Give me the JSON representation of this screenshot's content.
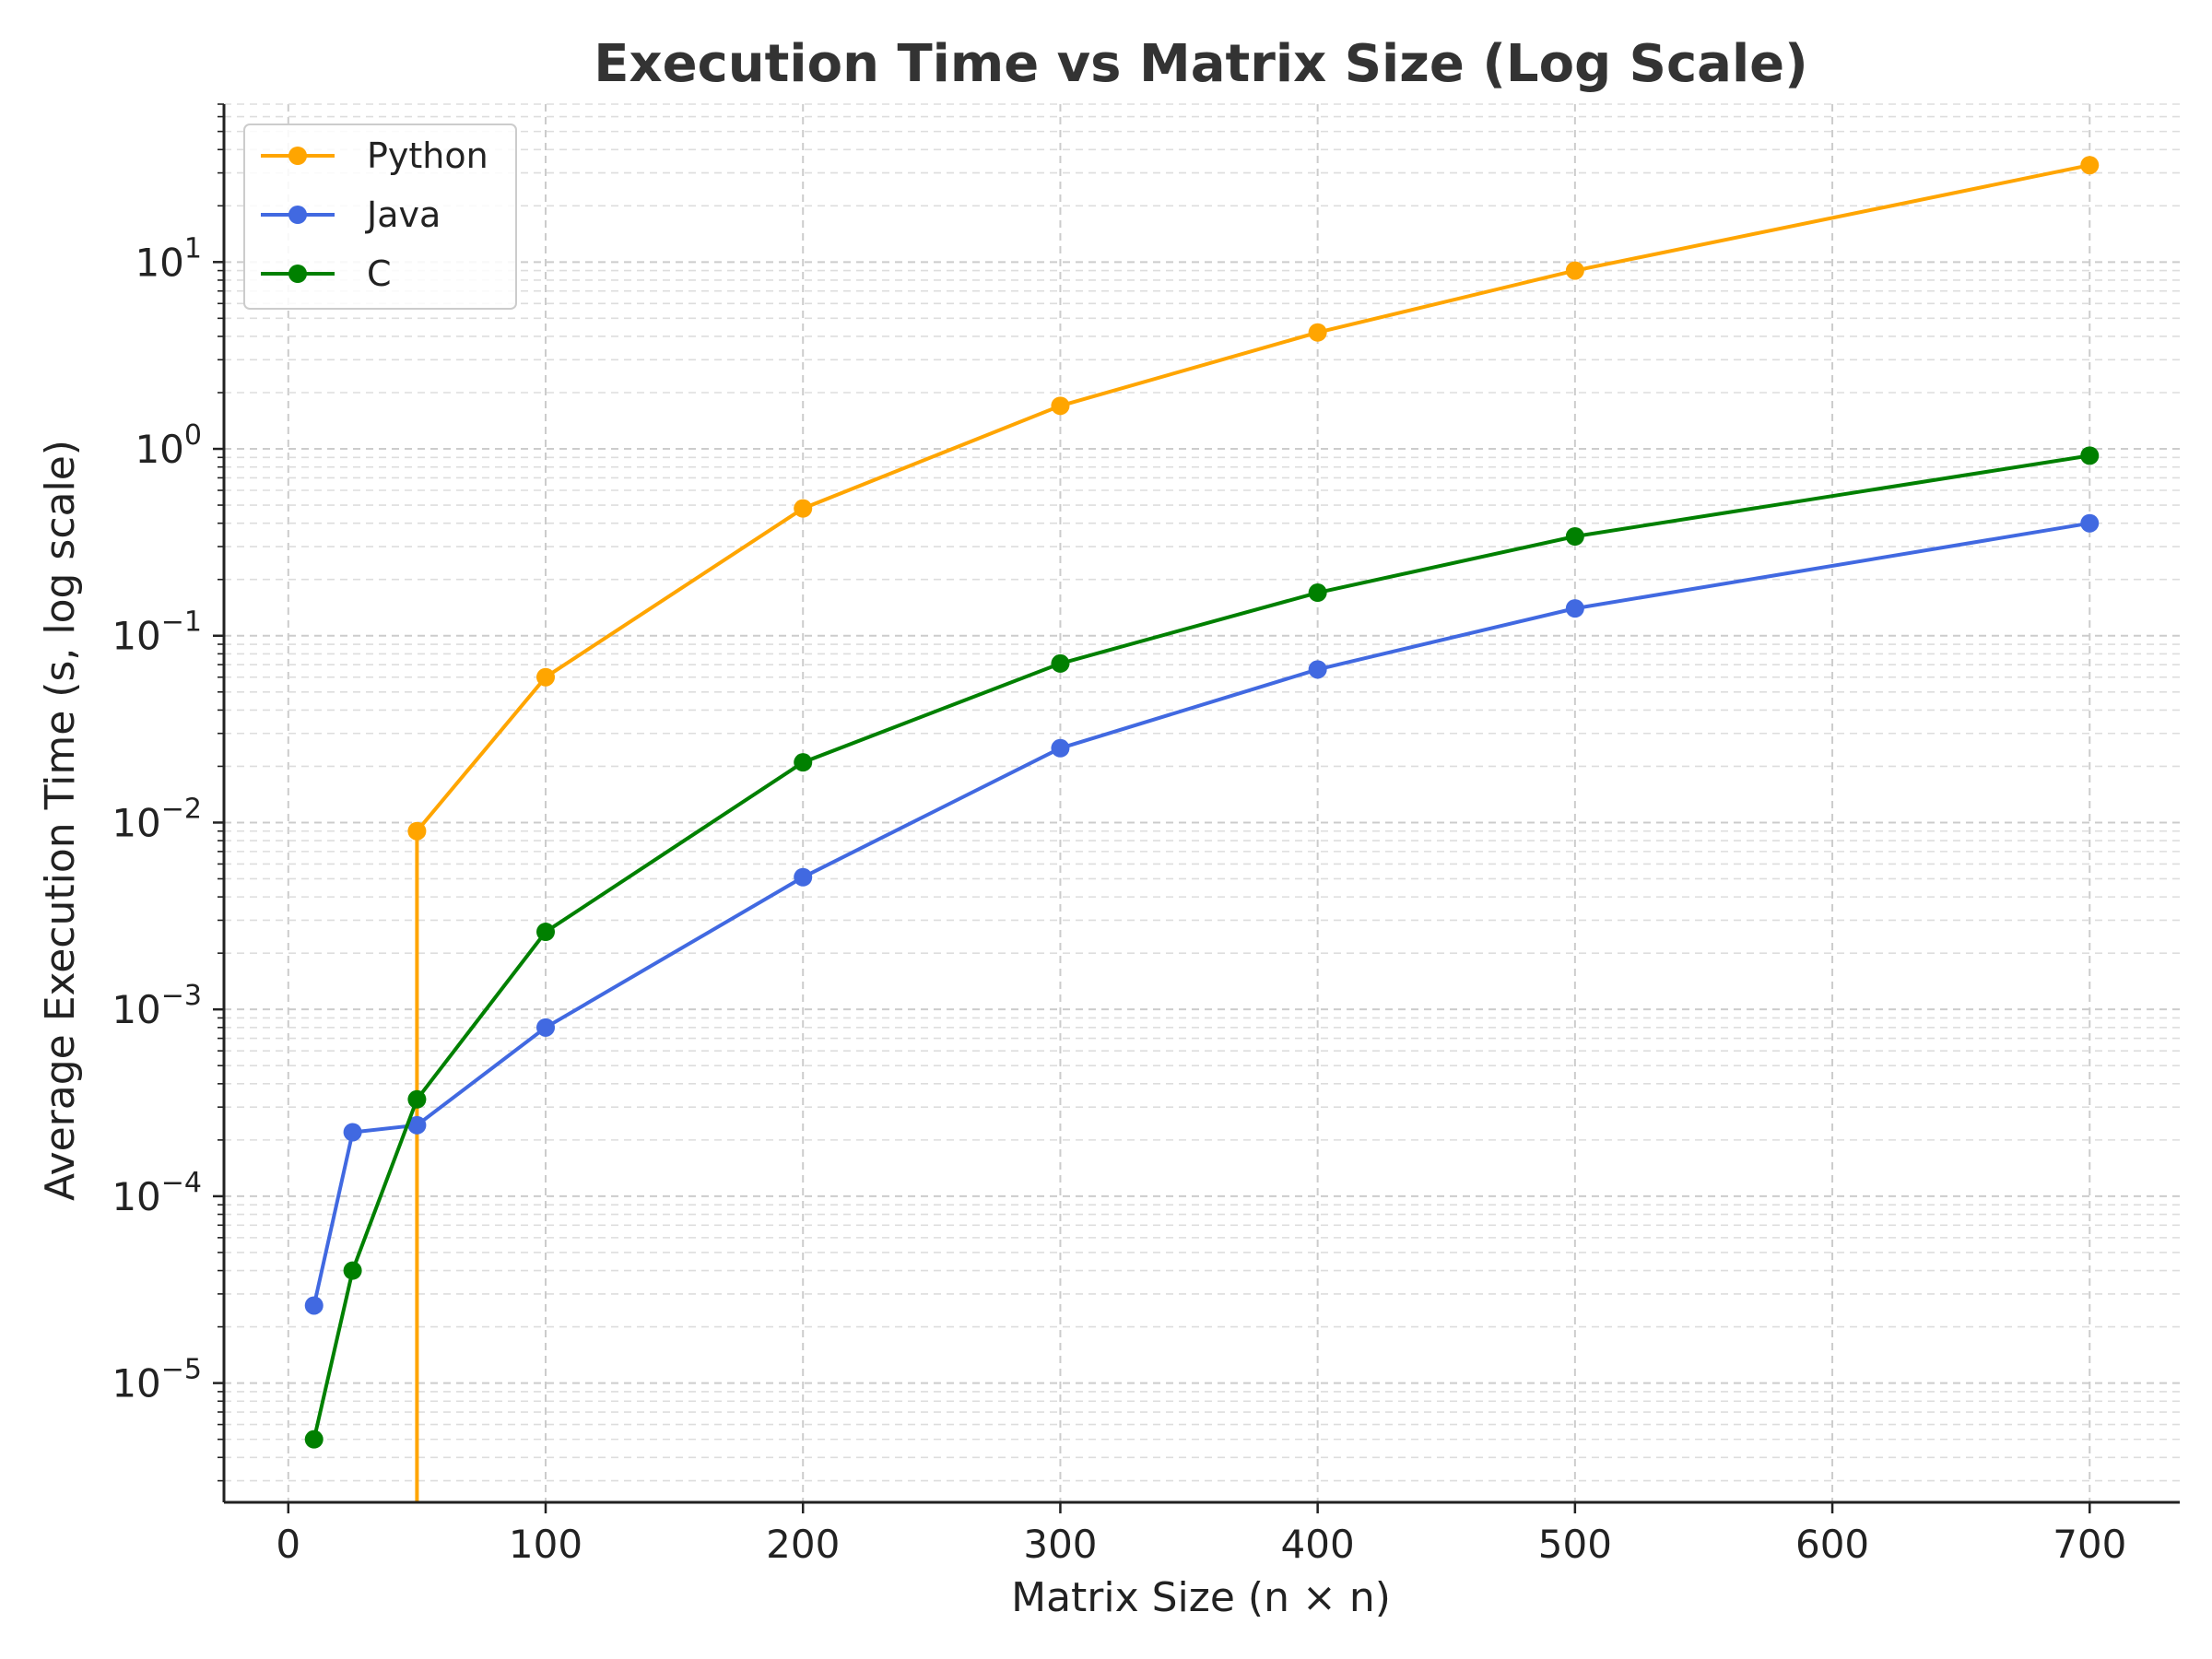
{
  "chart_data": {
    "type": "line",
    "title": "Execution Time vs Matrix Size (Log Scale)",
    "xlabel": "Matrix Size (n × n)",
    "ylabel": "Average Execution Time (s, log scale)",
    "yscale": "log",
    "xlim": [
      -25,
      735
    ],
    "ylim": [
      2.3e-06,
      70
    ],
    "x_ticks": [
      0,
      100,
      200,
      300,
      400,
      500,
      600,
      700
    ],
    "y_tick_exponents": [
      -5,
      -4,
      -3,
      -2,
      -1,
      0,
      1
    ],
    "grid": true,
    "legend_position": "top-left",
    "series": [
      {
        "name": "Python",
        "color": "#FFA500",
        "x": [
          50,
          100,
          200,
          300,
          400,
          500,
          700
        ],
        "y": [
          0.009,
          0.06,
          0.48,
          1.7,
          4.2,
          9.0,
          33.0
        ],
        "drop_to_zero_at_x": 50
      },
      {
        "name": "Java",
        "color": "#4169E1",
        "x": [
          10,
          25,
          50,
          100,
          200,
          300,
          400,
          500,
          700
        ],
        "y": [
          2.6e-05,
          0.00022,
          0.00024,
          0.0008,
          0.0051,
          0.025,
          0.066,
          0.14,
          0.4
        ]
      },
      {
        "name": "C",
        "color": "#008000",
        "x": [
          10,
          25,
          50,
          100,
          200,
          300,
          400,
          500,
          700
        ],
        "y": [
          5e-06,
          4e-05,
          0.00033,
          0.0026,
          0.021,
          0.071,
          0.17,
          0.34,
          0.92
        ]
      }
    ]
  }
}
